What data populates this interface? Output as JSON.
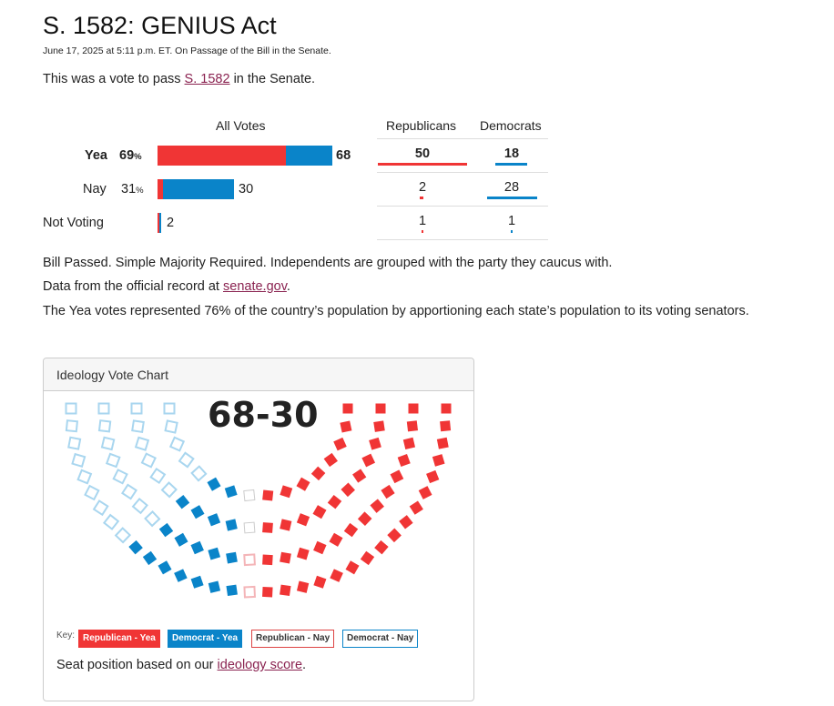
{
  "page": {
    "title": "S. 1582: GENIUS Act",
    "dateline": "June 17, 2025 at 5:11 p.m. ET. On Passage of the Bill in the Senate.",
    "intro_before": "This was a vote to pass ",
    "intro_link": "S. 1582",
    "intro_after": " in the Senate."
  },
  "votes": {
    "headers": {
      "all": "All Votes",
      "rep": "Republicans",
      "dem": "Democrats"
    },
    "pct_suffix": "%",
    "rows": [
      {
        "label": "Yea",
        "pct": "69",
        "total": "68",
        "rep": "50",
        "dem": "18",
        "rep_count": 50,
        "dem_count": 18
      },
      {
        "label": "Nay",
        "pct": "31",
        "total": "30",
        "rep": "2",
        "dem": "28",
        "rep_count": 2,
        "dem_count": 28
      },
      {
        "label": "Not Voting",
        "pct": "",
        "total": "2",
        "rep": "1",
        "dem": "1",
        "rep_count": 1,
        "dem_count": 1
      }
    ]
  },
  "notes": {
    "line1": "Bill Passed. Simple Majority Required. Independents are grouped with the party they caucus with.",
    "line2_before": "Data from the official record at ",
    "line2_link": "senate.gov",
    "line2_after": ".",
    "line3": "The Yea votes represented 76% of the country’s population by apportioning each state’s population to its voting senators."
  },
  "ideology": {
    "panel_title": "Ideology Vote Chart",
    "score": "68-30",
    "key_label": "Key:",
    "key_items": [
      "Republican - Yea",
      "Democrat - Yea",
      "Republican - Nay",
      "Democrat - Nay"
    ],
    "note_before": "Seat position based on our ",
    "note_link": "ideology score",
    "note_after": "."
  },
  "colors": {
    "republican": "#f03535",
    "democrat": "#0a84c9",
    "rep_nay_light": "#f4b5b8",
    "dem_nay_light": "#a9d6ef",
    "link": "#8a2250"
  }
}
